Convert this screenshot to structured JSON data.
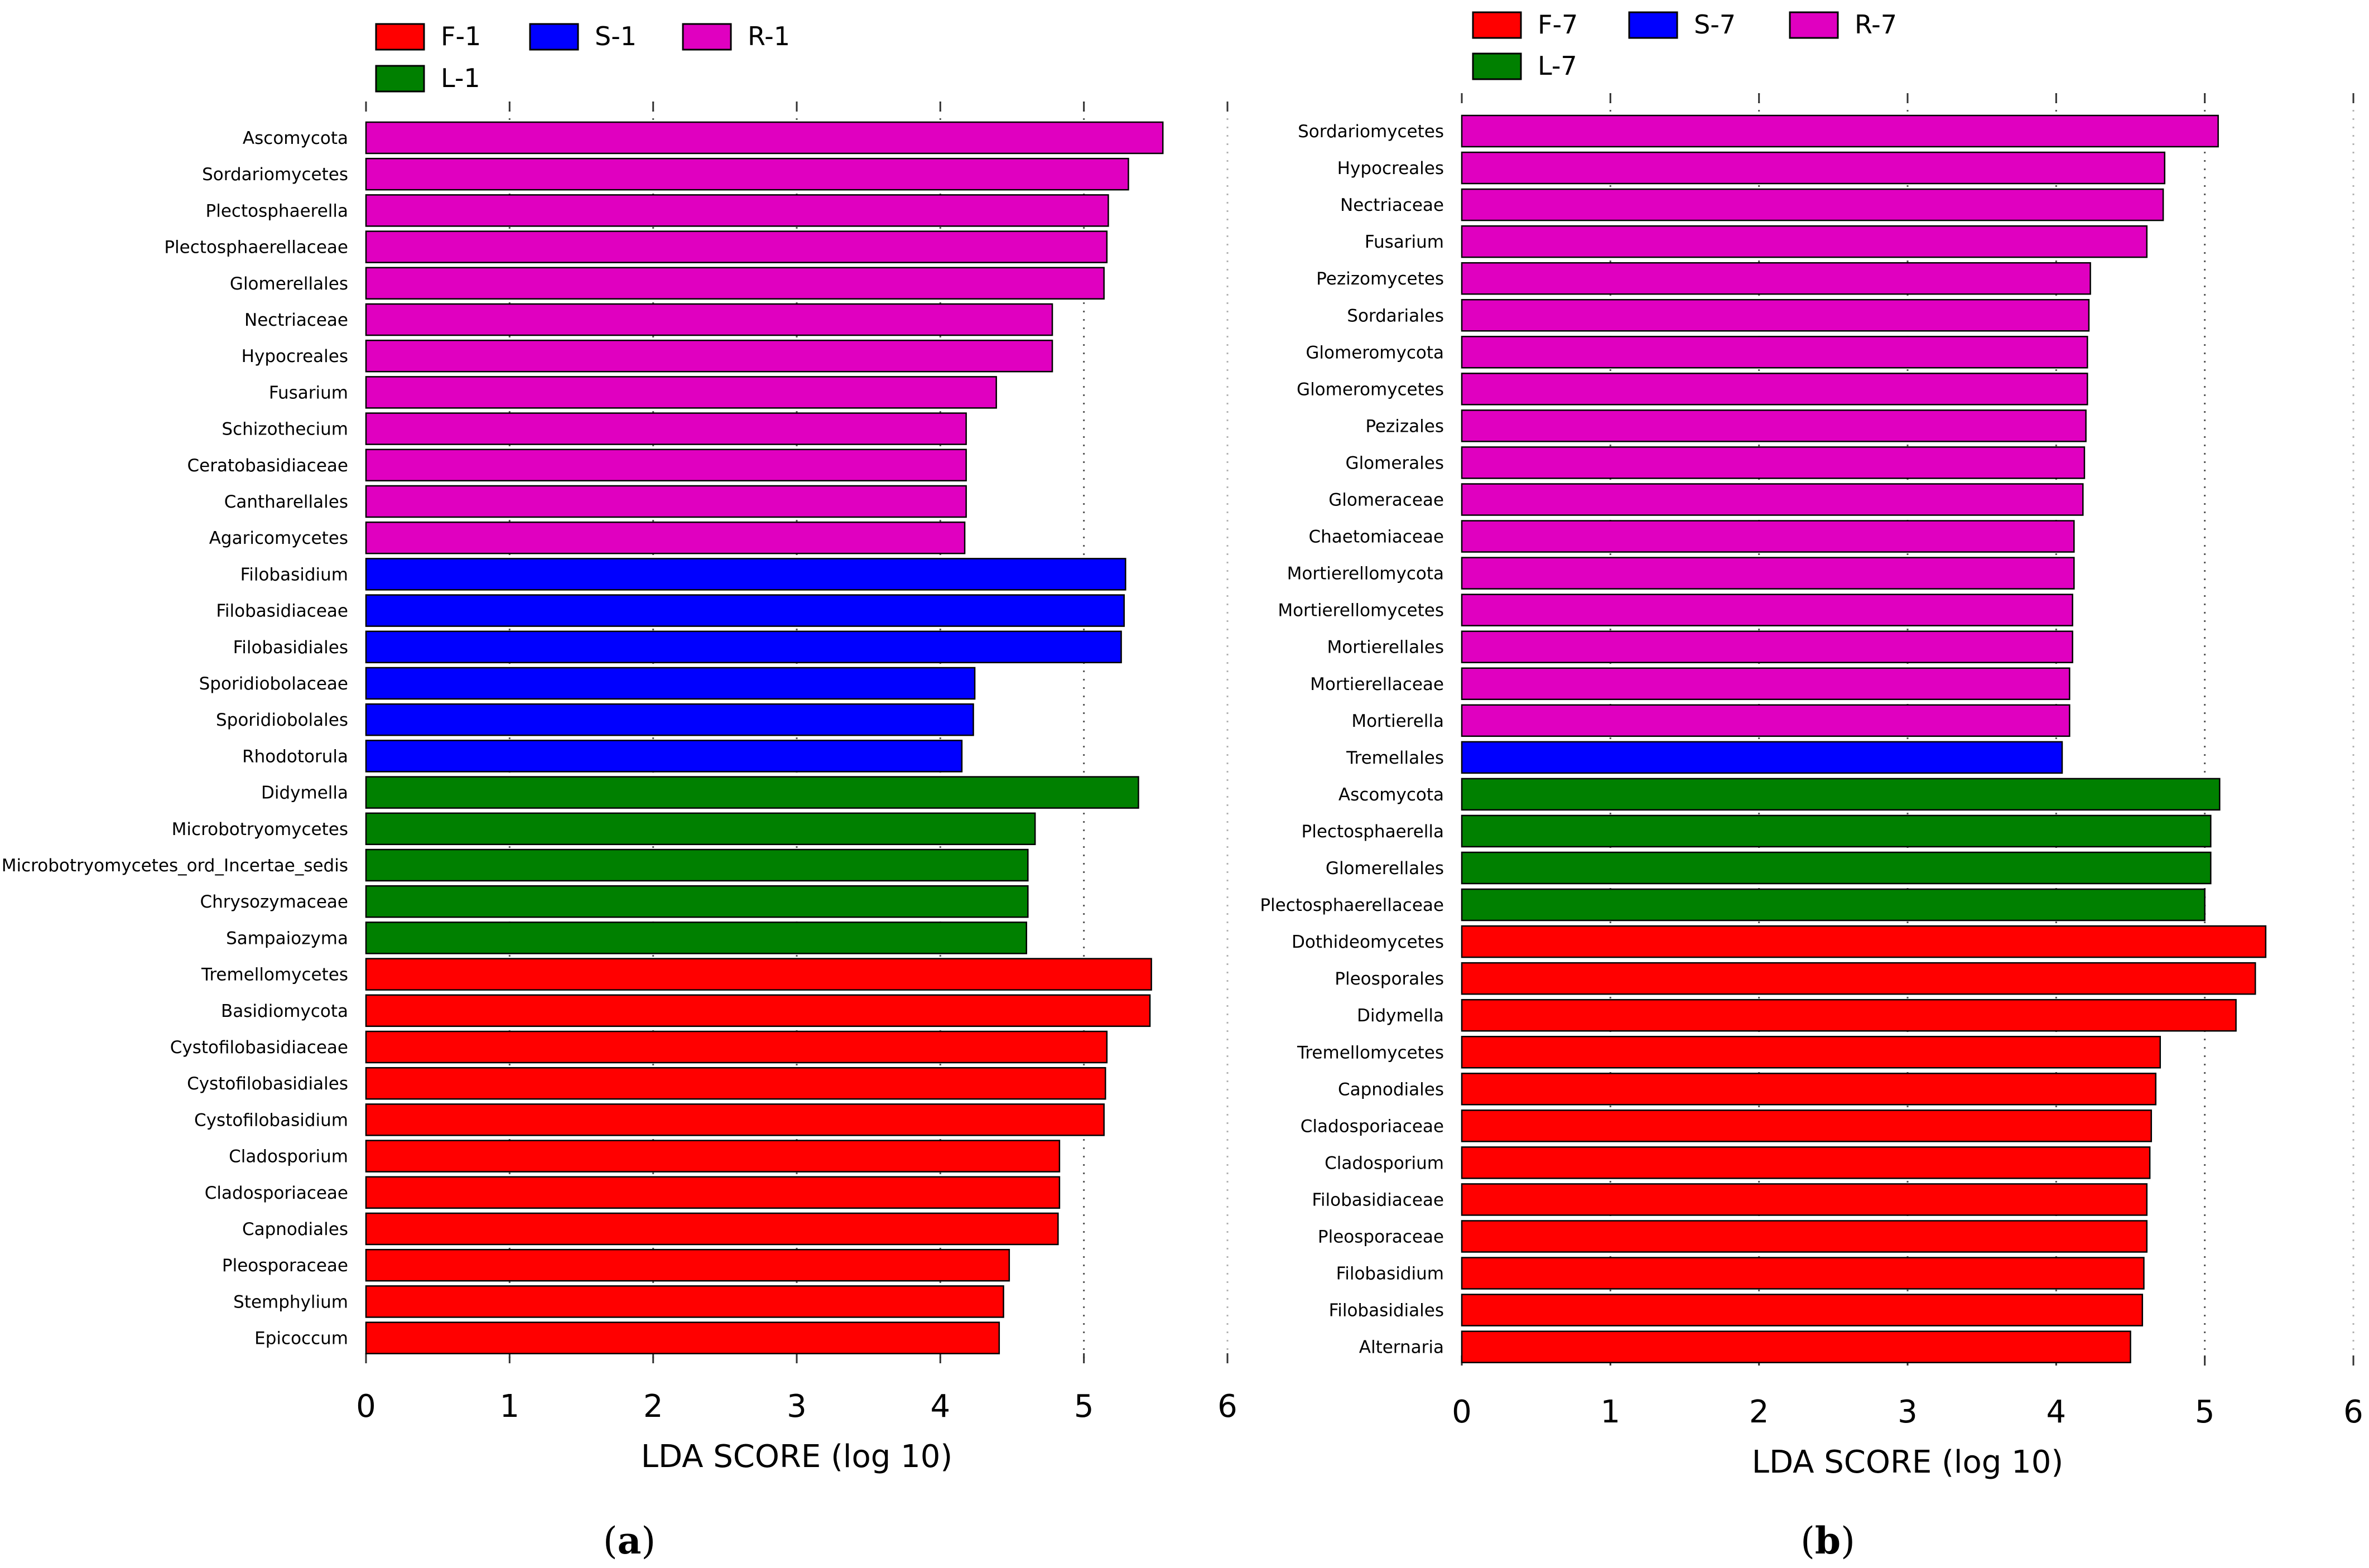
{
  "colors": {
    "F": "#ff0000",
    "S": "#0000ff",
    "R": "#e000c0",
    "L": "#008000"
  },
  "chart_data": [
    {
      "type": "bar",
      "orientation": "horizontal",
      "caption_letter": "a",
      "xlabel": "LDA SCORE (log 10)",
      "xlim": [
        0,
        6
      ],
      "xticks": [
        0,
        1,
        2,
        3,
        4,
        5,
        6
      ],
      "grid": "vertical dotted",
      "legend_position": "top-left",
      "legend": [
        {
          "label": "F-1",
          "group": "F"
        },
        {
          "label": "S-1",
          "group": "S"
        },
        {
          "label": "R-1",
          "group": "R"
        },
        {
          "label": "L-1",
          "group": "L"
        }
      ],
      "bars": [
        {
          "label": "Ascomycota",
          "value": 5.55,
          "group": "R"
        },
        {
          "label": "Sordariomycetes",
          "value": 5.31,
          "group": "R"
        },
        {
          "label": "Plectosphaerella",
          "value": 5.17,
          "group": "R"
        },
        {
          "label": "Plectosphaerellaceae",
          "value": 5.16,
          "group": "R"
        },
        {
          "label": "Glomerellales",
          "value": 5.14,
          "group": "R"
        },
        {
          "label": "Nectriaceae",
          "value": 4.78,
          "group": "R"
        },
        {
          "label": "Hypocreales",
          "value": 4.78,
          "group": "R"
        },
        {
          "label": "Fusarium",
          "value": 4.39,
          "group": "R"
        },
        {
          "label": "Schizothecium",
          "value": 4.18,
          "group": "R"
        },
        {
          "label": "Ceratobasidiaceae",
          "value": 4.18,
          "group": "R"
        },
        {
          "label": "Cantharellales",
          "value": 4.18,
          "group": "R"
        },
        {
          "label": "Agaricomycetes",
          "value": 4.17,
          "group": "R"
        },
        {
          "label": "Filobasidium",
          "value": 5.29,
          "group": "S"
        },
        {
          "label": "Filobasidiaceae",
          "value": 5.28,
          "group": "S"
        },
        {
          "label": "Filobasidiales",
          "value": 5.26,
          "group": "S"
        },
        {
          "label": "Sporidiobolaceae",
          "value": 4.24,
          "group": "S"
        },
        {
          "label": "Sporidiobolales",
          "value": 4.23,
          "group": "S"
        },
        {
          "label": "Rhodotorula",
          "value": 4.15,
          "group": "S"
        },
        {
          "label": "Didymella",
          "value": 5.38,
          "group": "L"
        },
        {
          "label": "Microbotryomycetes",
          "value": 4.66,
          "group": "L"
        },
        {
          "label": "Microbotryomycetes_ord_Incertae_sedis",
          "value": 4.61,
          "group": "L"
        },
        {
          "label": "Chrysozymaceae",
          "value": 4.61,
          "group": "L"
        },
        {
          "label": "Sampaiozyma",
          "value": 4.6,
          "group": "L"
        },
        {
          "label": "Tremellomycetes",
          "value": 5.47,
          "group": "F"
        },
        {
          "label": "Basidiomycota",
          "value": 5.46,
          "group": "F"
        },
        {
          "label": "Cystofilobasidiaceae",
          "value": 5.16,
          "group": "F"
        },
        {
          "label": "Cystofilobasidiales",
          "value": 5.15,
          "group": "F"
        },
        {
          "label": "Cystofilobasidium",
          "value": 5.14,
          "group": "F"
        },
        {
          "label": "Cladosporium",
          "value": 4.83,
          "group": "F"
        },
        {
          "label": "Cladosporiaceae",
          "value": 4.83,
          "group": "F"
        },
        {
          "label": "Capnodiales",
          "value": 4.82,
          "group": "F"
        },
        {
          "label": "Pleosporaceae",
          "value": 4.48,
          "group": "F"
        },
        {
          "label": "Stemphylium",
          "value": 4.44,
          "group": "F"
        },
        {
          "label": "Epicoccum",
          "value": 4.41,
          "group": "F"
        }
      ]
    },
    {
      "type": "bar",
      "orientation": "horizontal",
      "caption_letter": "b",
      "xlabel": "LDA SCORE (log 10)",
      "xlim": [
        0,
        6
      ],
      "xticks": [
        0,
        1,
        2,
        3,
        4,
        5,
        6
      ],
      "grid": "vertical dotted",
      "legend_position": "top-left",
      "legend": [
        {
          "label": "F-7",
          "group": "F"
        },
        {
          "label": "S-7",
          "group": "S"
        },
        {
          "label": "R-7",
          "group": "R"
        },
        {
          "label": "L-7",
          "group": "L"
        }
      ],
      "bars": [
        {
          "label": "Sordariomycetes",
          "value": 5.09,
          "group": "R"
        },
        {
          "label": "Hypocreales",
          "value": 4.73,
          "group": "R"
        },
        {
          "label": "Nectriaceae",
          "value": 4.72,
          "group": "R"
        },
        {
          "label": "Fusarium",
          "value": 4.61,
          "group": "R"
        },
        {
          "label": "Pezizomycetes",
          "value": 4.23,
          "group": "R"
        },
        {
          "label": "Sordariales",
          "value": 4.22,
          "group": "R"
        },
        {
          "label": "Glomeromycota",
          "value": 4.21,
          "group": "R"
        },
        {
          "label": "Glomeromycetes",
          "value": 4.21,
          "group": "R"
        },
        {
          "label": "Pezizales",
          "value": 4.2,
          "group": "R"
        },
        {
          "label": "Glomerales",
          "value": 4.19,
          "group": "R"
        },
        {
          "label": "Glomeraceae",
          "value": 4.18,
          "group": "R"
        },
        {
          "label": "Chaetomiaceae",
          "value": 4.12,
          "group": "R"
        },
        {
          "label": "Mortierellomycota",
          "value": 4.12,
          "group": "R"
        },
        {
          "label": "Mortierellomycetes",
          "value": 4.11,
          "group": "R"
        },
        {
          "label": "Mortierellales",
          "value": 4.11,
          "group": "R"
        },
        {
          "label": "Mortierellaceae",
          "value": 4.09,
          "group": "R"
        },
        {
          "label": "Mortierella",
          "value": 4.09,
          "group": "R"
        },
        {
          "label": "Tremellales",
          "value": 4.04,
          "group": "S"
        },
        {
          "label": "Ascomycota",
          "value": 5.1,
          "group": "L"
        },
        {
          "label": "Plectosphaerella",
          "value": 5.04,
          "group": "L"
        },
        {
          "label": "Glomerellales",
          "value": 5.04,
          "group": "L"
        },
        {
          "label": "Plectosphaerellaceae",
          "value": 5.0,
          "group": "L"
        },
        {
          "label": "Dothideomycetes",
          "value": 5.41,
          "group": "F"
        },
        {
          "label": "Pleosporales",
          "value": 5.34,
          "group": "F"
        },
        {
          "label": "Didymella",
          "value": 5.21,
          "group": "F"
        },
        {
          "label": "Tremellomycetes",
          "value": 4.7,
          "group": "F"
        },
        {
          "label": "Capnodiales",
          "value": 4.67,
          "group": "F"
        },
        {
          "label": "Cladosporiaceae",
          "value": 4.64,
          "group": "F"
        },
        {
          "label": "Cladosporium",
          "value": 4.63,
          "group": "F"
        },
        {
          "label": "Filobasidiaceae",
          "value": 4.61,
          "group": "F"
        },
        {
          "label": "Pleosporaceae",
          "value": 4.61,
          "group": "F"
        },
        {
          "label": "Filobasidium",
          "value": 4.59,
          "group": "F"
        },
        {
          "label": "Filobasidiales",
          "value": 4.58,
          "group": "F"
        },
        {
          "label": "Alternaria",
          "value": 4.5,
          "group": "F"
        }
      ]
    }
  ]
}
